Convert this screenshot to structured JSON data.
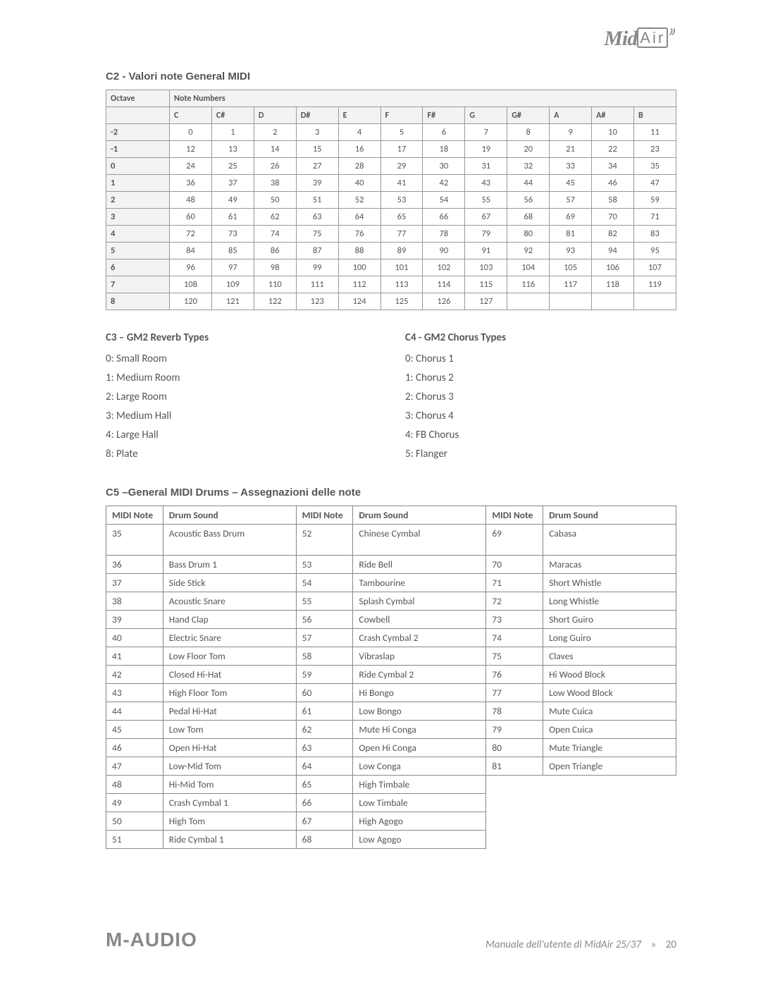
{
  "logo_top": "MidAir",
  "section_c2": "C2 - Valori note General MIDI",
  "midi_table": {
    "header_octave": "Octave",
    "header_note_numbers": "Note Numbers",
    "note_cols": [
      "C",
      "C#",
      "D",
      "D#",
      "E",
      "F",
      "F#",
      "G",
      "G#",
      "A",
      "A#",
      "B"
    ],
    "rows": [
      {
        "oct": "-2",
        "v": [
          "0",
          "1",
          "2",
          "3",
          "4",
          "5",
          "6",
          "7",
          "8",
          "9",
          "10",
          "11"
        ]
      },
      {
        "oct": "-1",
        "v": [
          "12",
          "13",
          "14",
          "15",
          "16",
          "17",
          "18",
          "19",
          "20",
          "21",
          "22",
          "23"
        ]
      },
      {
        "oct": "0",
        "v": [
          "24",
          "25",
          "26",
          "27",
          "28",
          "29",
          "30",
          "31",
          "32",
          "33",
          "34",
          "35"
        ]
      },
      {
        "oct": "1",
        "v": [
          "36",
          "37",
          "38",
          "39",
          "40",
          "41",
          "42",
          "43",
          "44",
          "45",
          "46",
          "47"
        ]
      },
      {
        "oct": "2",
        "v": [
          "48",
          "49",
          "50",
          "51",
          "52",
          "53",
          "54",
          "55",
          "56",
          "57",
          "58",
          "59"
        ]
      },
      {
        "oct": "3",
        "v": [
          "60",
          "61",
          "62",
          "63",
          "64",
          "65",
          "66",
          "67",
          "68",
          "69",
          "70",
          "71"
        ]
      },
      {
        "oct": "4",
        "v": [
          "72",
          "73",
          "74",
          "75",
          "76",
          "77",
          "78",
          "79",
          "80",
          "81",
          "82",
          "83"
        ]
      },
      {
        "oct": "5",
        "v": [
          "84",
          "85",
          "86",
          "87",
          "88",
          "89",
          "90",
          "91",
          "92",
          "93",
          "94",
          "95"
        ]
      },
      {
        "oct": "6",
        "v": [
          "96",
          "97",
          "98",
          "99",
          "100",
          "101",
          "102",
          "103",
          "104",
          "105",
          "106",
          "107"
        ]
      },
      {
        "oct": "7",
        "v": [
          "108",
          "109",
          "110",
          "111",
          "112",
          "113",
          "114",
          "115",
          "116",
          "117",
          "118",
          "119"
        ]
      },
      {
        "oct": "8",
        "v": [
          "120",
          "121",
          "122",
          "123",
          "124",
          "125",
          "126",
          "127",
          "",
          "",
          "",
          ""
        ]
      }
    ]
  },
  "section_c3": "C3 – GM2 Reverb Types",
  "reverb": [
    "0:  Small Room",
    "1:  Medium Room",
    "2:  Large Room",
    "3:  Medium Hall",
    "4:  Large Hall",
    "8:  Plate"
  ],
  "section_c4": "C4 - GM2 Chorus Types",
  "chorus": [
    "0:  Chorus 1",
    "1:  Chorus 2",
    "2:  Chorus 3",
    "3:  Chorus 4",
    "4:  FB Chorus",
    "5:  Flanger"
  ],
  "section_c5": "C5 –General MIDI Drums – Assegnazioni delle note",
  "drum_headers": {
    "note": "MIDI Note",
    "sound": "Drum Sound"
  },
  "drums_col1": [
    {
      "n": "35",
      "s": "Acoustic Bass Drum"
    },
    {
      "n": "36",
      "s": "Bass Drum 1"
    },
    {
      "n": "37",
      "s": "Side Stick"
    },
    {
      "n": "38",
      "s": "Acoustic Snare"
    },
    {
      "n": "39",
      "s": "Hand Clap"
    },
    {
      "n": "40",
      "s": "Electric Snare"
    },
    {
      "n": "41",
      "s": "Low Floor Tom"
    },
    {
      "n": "42",
      "s": "Closed Hi-Hat"
    },
    {
      "n": "43",
      "s": "High Floor Tom"
    },
    {
      "n": "44",
      "s": "Pedal Hi-Hat"
    },
    {
      "n": "45",
      "s": "Low Tom"
    },
    {
      "n": "46",
      "s": "Open Hi-Hat"
    },
    {
      "n": "47",
      "s": "Low-Mid Tom"
    },
    {
      "n": "48",
      "s": "Hi-Mid Tom"
    },
    {
      "n": "49",
      "s": "Crash Cymbal 1"
    },
    {
      "n": "50",
      "s": "High Tom"
    },
    {
      "n": "51",
      "s": "Ride Cymbal 1"
    }
  ],
  "drums_col2": [
    {
      "n": "52",
      "s": "Chinese Cymbal"
    },
    {
      "n": "53",
      "s": "Ride Bell"
    },
    {
      "n": "54",
      "s": "Tambourine"
    },
    {
      "n": "55",
      "s": "Splash Cymbal"
    },
    {
      "n": "56",
      "s": "Cowbell"
    },
    {
      "n": "57",
      "s": "Crash Cymbal 2"
    },
    {
      "n": "58",
      "s": "Vibraslap"
    },
    {
      "n": "59",
      "s": "Ride Cymbal 2"
    },
    {
      "n": "60",
      "s": "Hi Bongo"
    },
    {
      "n": "61",
      "s": "Low Bongo"
    },
    {
      "n": "62",
      "s": "Mute Hi Conga"
    },
    {
      "n": "63",
      "s": "Open Hi Conga"
    },
    {
      "n": "64",
      "s": "Low Conga"
    },
    {
      "n": "65",
      "s": "High Timbale"
    },
    {
      "n": "66",
      "s": "Low Timbale"
    },
    {
      "n": "67",
      "s": "High Agogo"
    },
    {
      "n": "68",
      "s": "Low Agogo"
    }
  ],
  "drums_col3": [
    {
      "n": "69",
      "s": "Cabasa"
    },
    {
      "n": "70",
      "s": "Maracas"
    },
    {
      "n": "71",
      "s": "Short Whistle"
    },
    {
      "n": "72",
      "s": "Long Whistle"
    },
    {
      "n": "73",
      "s": "Short Guiro"
    },
    {
      "n": "74",
      "s": "Long Guiro"
    },
    {
      "n": "75",
      "s": "Claves"
    },
    {
      "n": "76",
      "s": "Hi Wood Block"
    },
    {
      "n": "77",
      "s": "Low Wood Block"
    },
    {
      "n": "78",
      "s": "Mute Cuica"
    },
    {
      "n": "79",
      "s": "Open Cuica"
    },
    {
      "n": "80",
      "s": "Mute Triangle"
    },
    {
      "n": "81",
      "s": "Open Triangle"
    }
  ],
  "footer_logo": "M-AUDIO",
  "footer_text": "Manuale dell'utente di MidAir 25/37",
  "footer_sep": "»",
  "footer_page": "20",
  "colors": {
    "bg": "#ffffff",
    "text": "#555555",
    "border": "#999999",
    "shade": "#f3f3f3",
    "logo": "#888888"
  }
}
